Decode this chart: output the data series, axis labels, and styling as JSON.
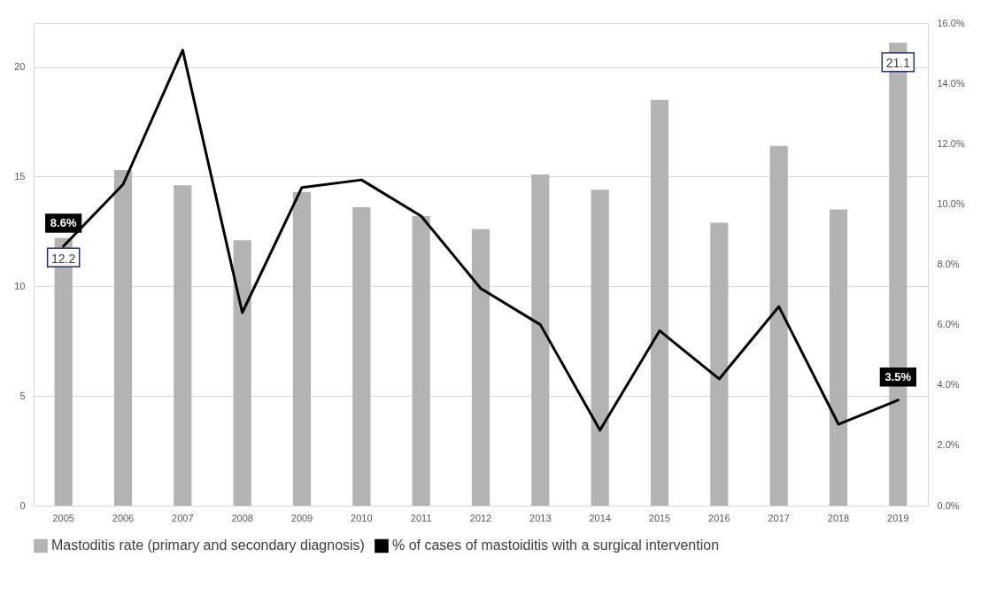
{
  "chart_data": {
    "type": "bar",
    "categories": [
      "2005",
      "2006",
      "2007",
      "2008",
      "2009",
      "2010",
      "2011",
      "2012",
      "2013",
      "2014",
      "2015",
      "2016",
      "2017",
      "2018",
      "2019"
    ],
    "series": [
      {
        "name": "Mastoditis rate (primary and secondary diagnosis)",
        "color": "#b3b3b3",
        "values": [
          12.2,
          15.3,
          14.6,
          12.1,
          14.3,
          13.6,
          13.2,
          12.6,
          15.1,
          14.4,
          18.5,
          12.9,
          16.4,
          13.5,
          21.1
        ],
        "value_labels": [
          "12.2",
          null,
          null,
          null,
          null,
          null,
          null,
          null,
          null,
          null,
          null,
          null,
          null,
          null,
          "21.1"
        ]
      },
      {
        "name": "% of cases of mastoiditis with a surgical intervention",
        "type": "line",
        "axis": "y2",
        "color": "#000000",
        "values": [
          8.6,
          10.65,
          15.1,
          6.4,
          10.55,
          10.8,
          9.6,
          7.2,
          6.0,
          2.5,
          5.8,
          4.2,
          6.6,
          2.7,
          3.5
        ],
        "value_labels": [
          "8.6%",
          null,
          null,
          null,
          null,
          null,
          null,
          null,
          null,
          null,
          null,
          null,
          null,
          null,
          "3.5%"
        ]
      }
    ],
    "ylim": [
      0,
      22
    ],
    "yticks": [
      0,
      5,
      10,
      15,
      20
    ],
    "y2lim": [
      0,
      16
    ],
    "y2ticks": [
      {
        "value": 0,
        "label": "0.0%"
      },
      {
        "value": 2,
        "label": "2.0%"
      },
      {
        "value": 4,
        "label": "4.0%"
      },
      {
        "value": 6,
        "label": "6.0%"
      },
      {
        "value": 8,
        "label": "8.0%"
      },
      {
        "value": 10,
        "label": "10.0%"
      },
      {
        "value": 12,
        "label": "12.0%"
      },
      {
        "value": 14,
        "label": "14.0%"
      },
      {
        "value": 16,
        "label": "16.0%"
      }
    ],
    "grid": "y",
    "legend": "bottom"
  }
}
